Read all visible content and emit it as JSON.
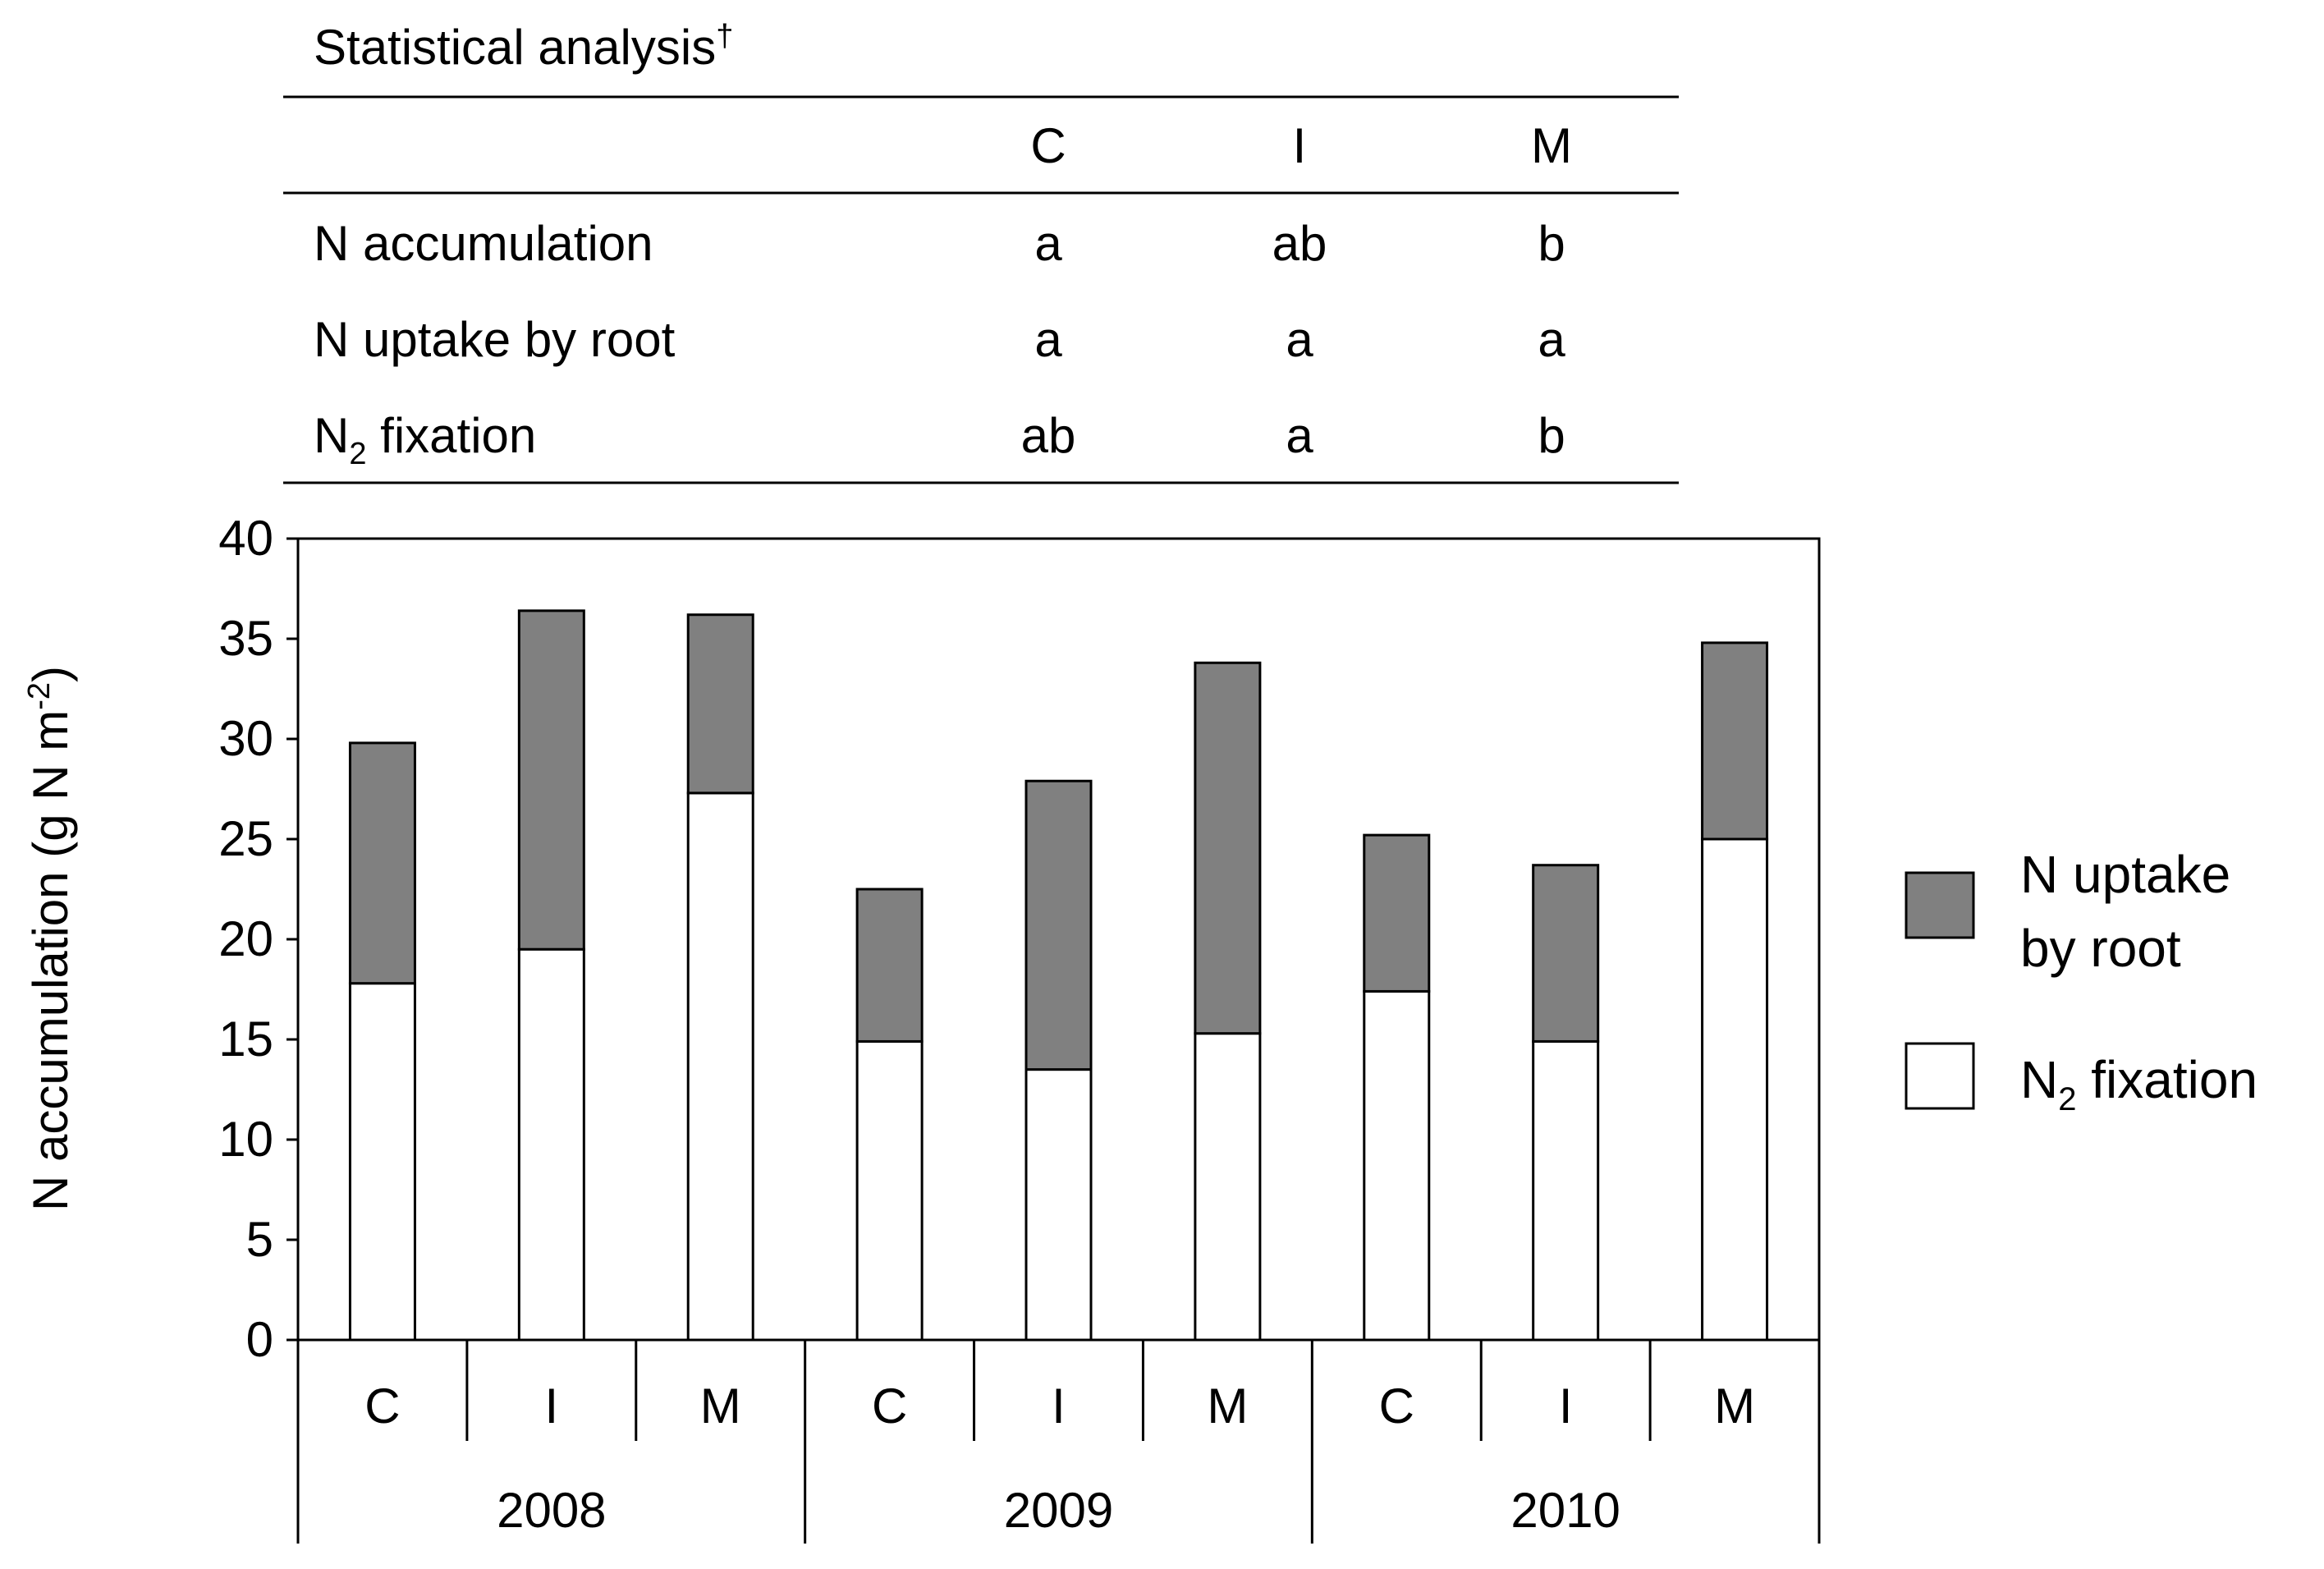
{
  "stats_table": {
    "title": "Statistical analysis",
    "dagger": "†",
    "columns": [
      "C",
      "I",
      "M"
    ],
    "rows": [
      {
        "label": "N accumulation",
        "label_sub": "",
        "label_rest": "",
        "values": [
          "a",
          "ab",
          "b"
        ]
      },
      {
        "label": "N uptake by root",
        "label_sub": "",
        "label_rest": "",
        "values": [
          "a",
          "a",
          "a"
        ]
      },
      {
        "label": "N",
        "label_sub": "2",
        "label_rest": " fixation",
        "values": [
          "ab",
          "a",
          "b"
        ]
      }
    ]
  },
  "chart_data": {
    "type": "bar",
    "stacked": true,
    "categories": [
      "C",
      "I",
      "M",
      "C",
      "I",
      "M",
      "C",
      "I",
      "M"
    ],
    "groups": [
      {
        "label": "2008",
        "span": 3
      },
      {
        "label": "2009",
        "span": 3
      },
      {
        "label": "2010",
        "span": 3
      }
    ],
    "series": [
      {
        "name": "N2 fixation",
        "legend": "N",
        "legend_sub": "2",
        "legend_rest": " fixation",
        "color": "#ffffff",
        "values": [
          17.8,
          19.5,
          27.3,
          14.9,
          13.5,
          15.3,
          17.4,
          14.9,
          25.0
        ]
      },
      {
        "name": "N uptake by root",
        "legend_line1": "N uptake",
        "legend_line2": "by root",
        "color": "#808080",
        "values": [
          12.0,
          16.9,
          8.9,
          7.6,
          14.4,
          18.5,
          7.8,
          8.8,
          9.8
        ]
      }
    ],
    "ylabel": "N accumulation  (g N m",
    "ylabel_sup": "-2",
    "ylabel_close": ")",
    "ylim": [
      0,
      40
    ],
    "yticks": [
      "0",
      "5",
      "10",
      "15",
      "20",
      "25",
      "30",
      "35",
      "40"
    ],
    "grid": false,
    "legend_position": "right"
  }
}
